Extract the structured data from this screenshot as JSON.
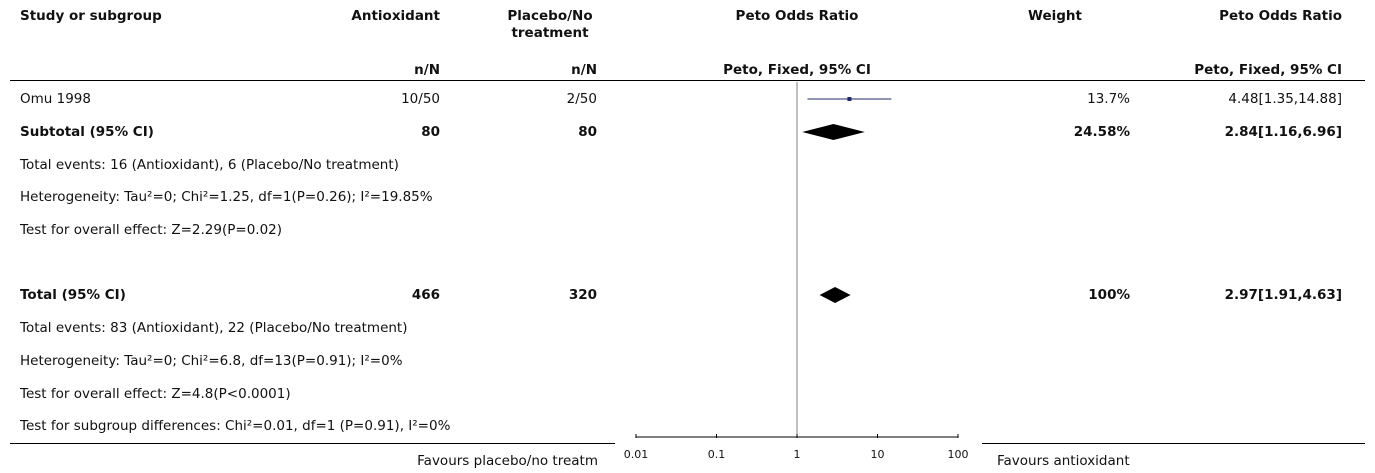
{
  "headers": {
    "study": "Study or subgroup",
    "group1": "Antioxidant",
    "group2_line1": "Placebo/No",
    "group2_line2": "treatment",
    "peto_or": "Peto Odds Ratio",
    "weight": "Weight",
    "peto_or2": "Peto Odds Ratio",
    "n1": "n/N",
    "n2": "n/N",
    "method": "Peto, Fixed, 95% CI",
    "method2": "Peto, Fixed, 95% CI"
  },
  "rows": {
    "study1": {
      "name": "Omu 1998",
      "g1": "10/50",
      "g2": "2/50",
      "weight": "13.7%",
      "ci": "4.48[1.35,14.88]"
    },
    "subtotal": {
      "name": "Subtotal (95% CI)",
      "g1": "80",
      "g2": "80",
      "weight": "24.58%",
      "ci": "2.84[1.16,6.96]"
    },
    "subtotal_events": "Total events: 16 (Antioxidant), 6 (Placebo/No treatment)",
    "subtotal_het": "Heterogeneity: Tau²=0; Chi²=1.25, df=1(P=0.26); I²=19.85%",
    "subtotal_test": "Test for overall effect: Z=2.29(P=0.02)",
    "total": {
      "name": "Total (95% CI)",
      "g1": "466",
      "g2": "320",
      "weight": "100%",
      "ci": "2.97[1.91,4.63]"
    },
    "total_events": "Total events: 83 (Antioxidant), 22 (Placebo/No treatment)",
    "total_het": "Heterogeneity: Tau²=0; Chi²=6.8, df=13(P=0.91); I²=0%",
    "total_test": "Test for overall effect: Z=4.8(P<0.0001)",
    "subgroup_test": "Test for subgroup differences: Chi²=0.01, df=1 (P=0.91), I²=0%"
  },
  "footer": {
    "favours_left": "Favours placebo/no treatm",
    "favours_right": "Favours antioxidant"
  },
  "chart_data": {
    "type": "forest",
    "scale": "log",
    "xlim": [
      0.01,
      100
    ],
    "ticks": [
      {
        "value": 0.01,
        "label": "0.01"
      },
      {
        "value": 0.1,
        "label": "0.1"
      },
      {
        "value": 1,
        "label": "1"
      },
      {
        "value": 10,
        "label": "10"
      },
      {
        "value": 100,
        "label": "100"
      }
    ],
    "studies": [
      {
        "name": "Omu 1998",
        "or": 4.48,
        "lower": 1.35,
        "upper": 14.88,
        "weight": 13.7
      }
    ],
    "pooled": [
      {
        "name": "Subtotal (95% CI)",
        "or": 2.84,
        "lower": 1.16,
        "upper": 6.96
      },
      {
        "name": "Total (95% CI)",
        "or": 2.97,
        "lower": 1.91,
        "upper": 4.63
      }
    ],
    "colors": {
      "study_marker": "#1f2a6b",
      "pooled": "#000000"
    }
  }
}
